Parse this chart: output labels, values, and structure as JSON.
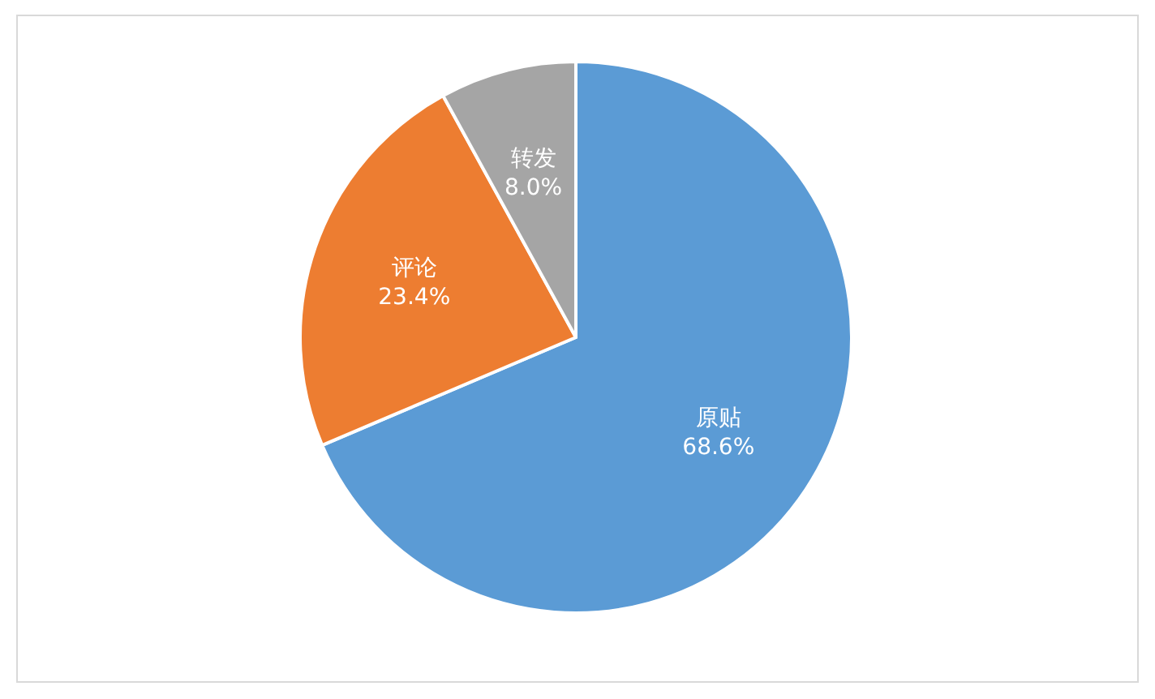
{
  "chart_data": {
    "type": "pie",
    "categories": [
      "原贴",
      "评论",
      "转发"
    ],
    "values": [
      68.6,
      23.4,
      8.0
    ],
    "colors": [
      "#5b9bd5",
      "#ed7d31",
      "#a5a5a5"
    ],
    "value_labels": [
      "68.6%",
      "23.4%",
      "8.0%"
    ]
  }
}
